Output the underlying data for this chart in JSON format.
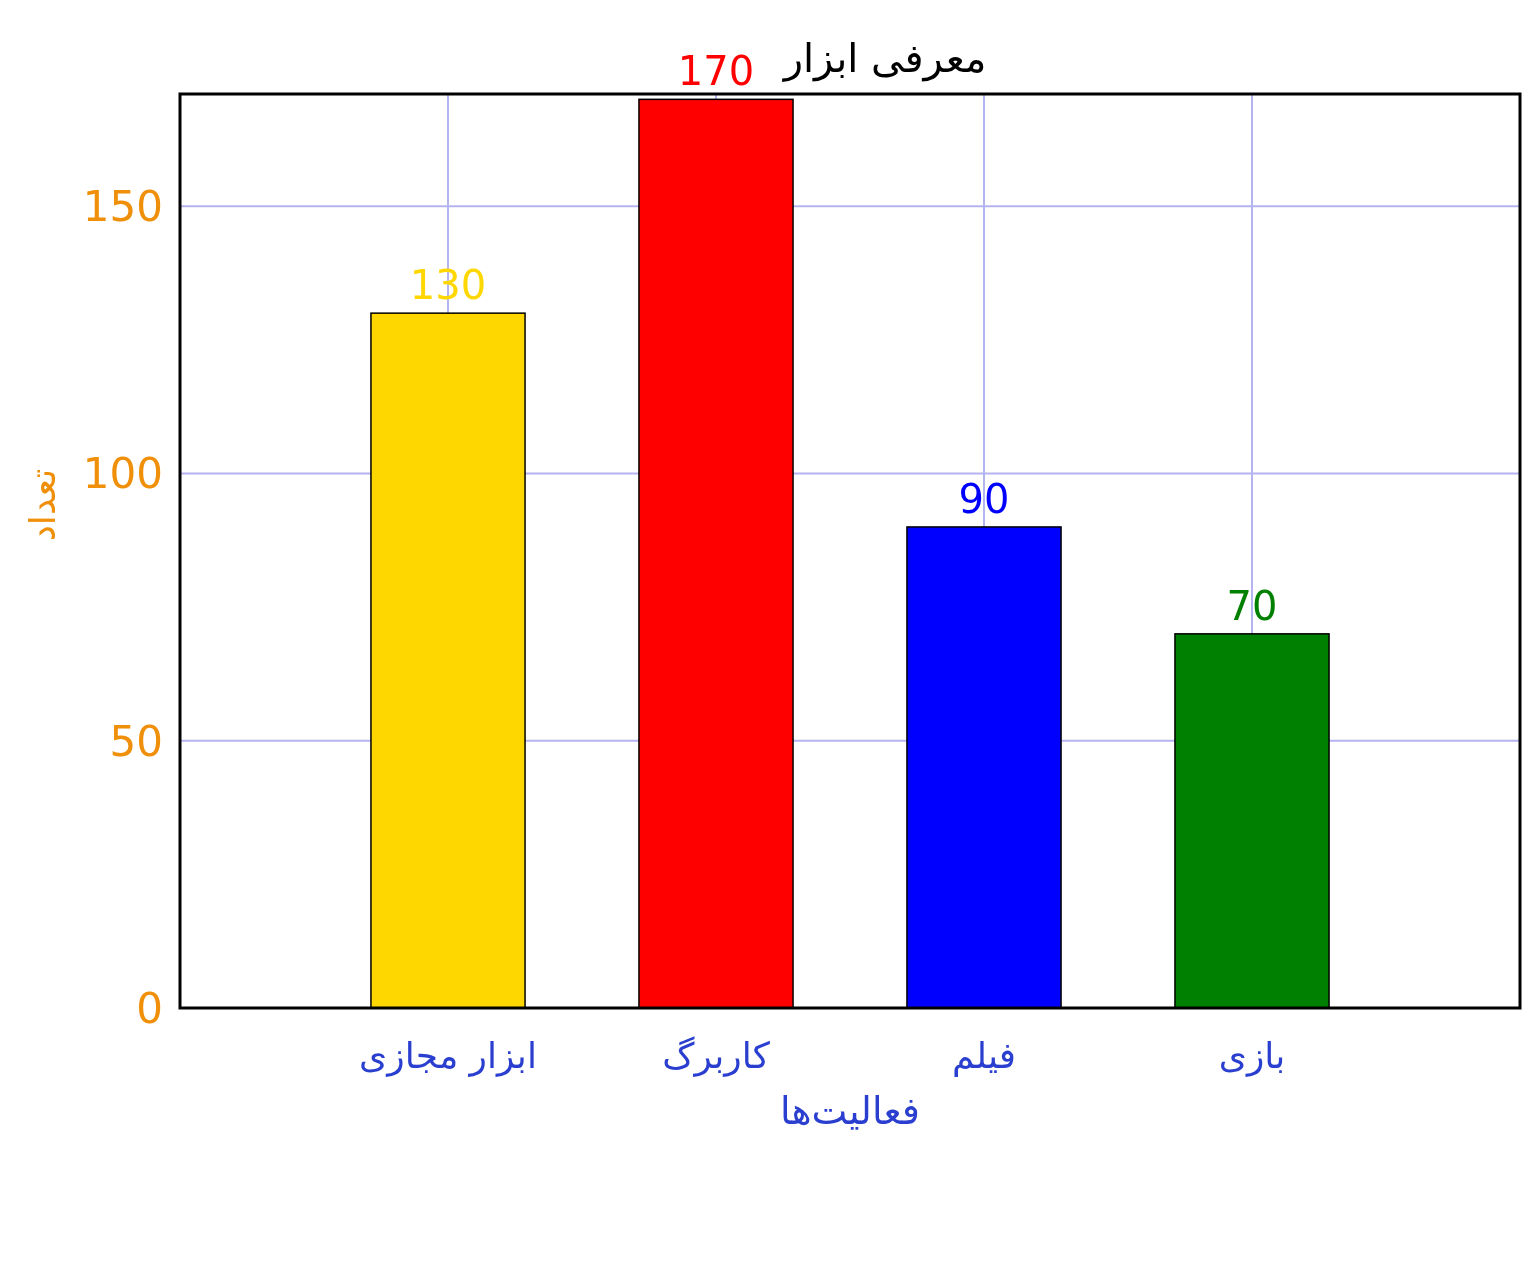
{
  "chart_data": {
    "type": "bar",
    "title": "معرفی ابزار",
    "xlabel": "فعالیت‌ها",
    "ylabel": "تعداد",
    "categories": [
      "ابزار مجازی",
      "کاربرگ",
      "فیلم",
      "بازی"
    ],
    "values": [
      130,
      170,
      90,
      70
    ],
    "colors": [
      "#ffd700",
      "#ff0000",
      "#0000ff",
      "#008000"
    ],
    "ylim": [
      0,
      171
    ],
    "yticks": [
      0,
      50,
      100,
      150
    ],
    "grid": true,
    "data_labels": true
  }
}
